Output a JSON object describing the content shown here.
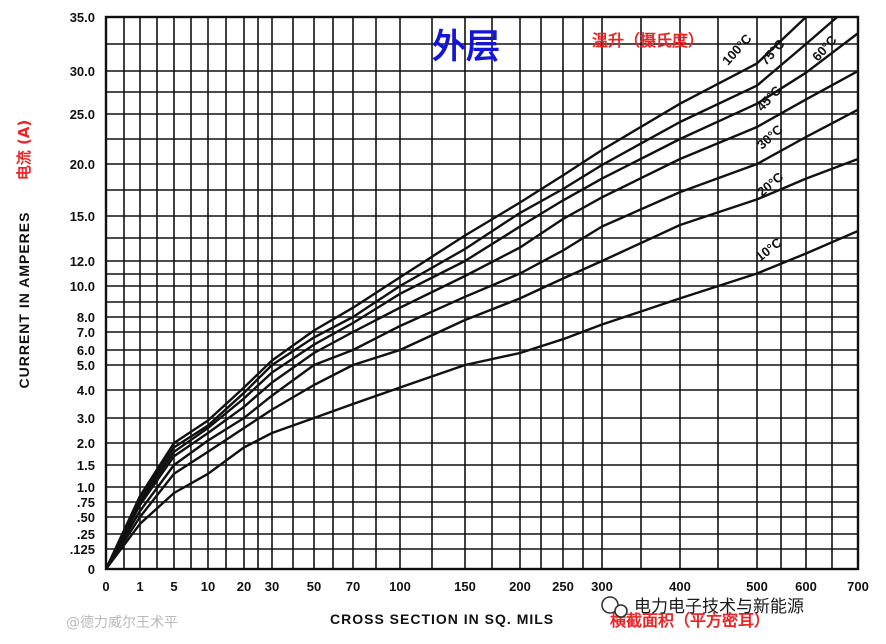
{
  "chart_data": {
    "type": "line",
    "title": "外层",
    "legend_title": "温升（摄氏度）",
    "xlabel": "CROSS SECTION IN SQ. MILS",
    "xlabel_cn": "横截面积（平方密耳）",
    "ylabel": "CURRENT IN AMPERES",
    "ylabel_cn": "电流 (A)",
    "x_ticks": [
      {
        "v": 0,
        "t": "0"
      },
      {
        "v": 1,
        "t": "1"
      },
      {
        "v": 5,
        "t": "5"
      },
      {
        "v": 10,
        "t": "10"
      },
      {
        "v": 20,
        "t": "20"
      },
      {
        "v": 30,
        "t": "30"
      },
      {
        "v": 50,
        "t": "50"
      },
      {
        "v": 70,
        "t": "70"
      },
      {
        "v": 100,
        "t": "100"
      },
      {
        "v": 150,
        "t": "150"
      },
      {
        "v": 200,
        "t": "200"
      },
      {
        "v": 250,
        "t": "250"
      },
      {
        "v": 300,
        "t": "300"
      },
      {
        "v": 400,
        "t": "400"
      },
      {
        "v": 500,
        "t": "500"
      },
      {
        "v": 600,
        "t": "600"
      },
      {
        "v": 700,
        "t": "700"
      }
    ],
    "y_ticks": [
      {
        "v": 0,
        "t": "0"
      },
      {
        "v": 0.125,
        "t": ".125"
      },
      {
        "v": 0.25,
        "t": ".25"
      },
      {
        "v": 0.5,
        "t": ".50"
      },
      {
        "v": 0.75,
        "t": ".75"
      },
      {
        "v": 1.0,
        "t": "1.0"
      },
      {
        "v": 1.5,
        "t": "1.5"
      },
      {
        "v": 2.0,
        "t": "2.0"
      },
      {
        "v": 3.0,
        "t": "3.0"
      },
      {
        "v": 4.0,
        "t": "4.0"
      },
      {
        "v": 5.0,
        "t": "5.0"
      },
      {
        "v": 6.0,
        "t": "6.0"
      },
      {
        "v": 7.0,
        "t": "7.0"
      },
      {
        "v": 8.0,
        "t": "8.0"
      },
      {
        "v": 10.0,
        "t": "10.0"
      },
      {
        "v": 12.0,
        "t": "12.0"
      },
      {
        "v": 15.0,
        "t": "15.0"
      },
      {
        "v": 20.0,
        "t": "20.0"
      },
      {
        "v": 25.0,
        "t": "25.0"
      },
      {
        "v": 30.0,
        "t": "30.0"
      },
      {
        "v": 35.0,
        "t": "35.0"
      }
    ],
    "xlim": [
      0,
      700
    ],
    "ylim": [
      0,
      35
    ],
    "scale": "non-linear (manufacturer nomograph axes)",
    "grid": true,
    "series": [
      {
        "name": "10°C",
        "x": [
          0,
          1,
          5,
          10,
          20,
          30,
          50,
          70,
          100,
          150,
          200,
          250,
          300,
          400,
          500,
          600,
          700
        ],
        "y": [
          0,
          0.4,
          0.9,
          1.3,
          1.9,
          2.4,
          3.0,
          3.5,
          4.1,
          5.0,
          5.8,
          6.6,
          7.5,
          9.2,
          11.0,
          12.5,
          14.0
        ]
      },
      {
        "name": "20°C",
        "x": [
          0,
          1,
          5,
          10,
          20,
          30,
          50,
          70,
          100,
          150,
          200,
          250,
          300,
          400,
          500,
          600,
          700
        ],
        "y": [
          0,
          0.5,
          1.3,
          1.8,
          2.6,
          3.3,
          4.2,
          5.0,
          6.0,
          7.8,
          9.2,
          10.6,
          12.0,
          14.4,
          16.6,
          18.6,
          20.5
        ]
      },
      {
        "name": "30°C",
        "x": [
          0,
          1,
          5,
          10,
          20,
          30,
          50,
          70,
          100,
          150,
          200,
          250,
          300,
          400,
          500,
          600,
          700
        ],
        "y": [
          0,
          0.6,
          1.5,
          2.1,
          3.0,
          3.8,
          5.0,
          6.0,
          7.4,
          9.3,
          11.0,
          12.7,
          14.3,
          17.3,
          20.0,
          22.7,
          25.5
        ]
      },
      {
        "name": "45°C",
        "x": [
          0,
          1,
          5,
          10,
          20,
          30,
          50,
          70,
          100,
          150,
          200,
          250,
          300,
          400,
          500,
          600,
          700
        ],
        "y": [
          0,
          0.7,
          1.7,
          2.4,
          3.4,
          4.3,
          5.8,
          7.0,
          8.6,
          10.8,
          12.9,
          14.8,
          16.8,
          20.5,
          23.7,
          26.7,
          30.0
        ]
      },
      {
        "name": "60°C",
        "x": [
          0,
          1,
          5,
          10,
          20,
          30,
          50,
          70,
          100,
          150,
          200,
          250,
          300,
          400,
          500,
          600,
          700
        ],
        "y": [
          0,
          0.75,
          1.8,
          2.6,
          3.7,
          4.7,
          6.3,
          7.6,
          9.5,
          12.0,
          14.3,
          16.5,
          18.6,
          22.5,
          26.2,
          29.8,
          33.5
        ]
      },
      {
        "name": "75°C",
        "x": [
          0,
          1,
          5,
          10,
          20,
          30,
          50,
          70,
          100,
          150,
          200,
          250,
          300,
          400,
          500,
          600,
          660
        ],
        "y": [
          0,
          0.8,
          1.9,
          2.7,
          3.9,
          5.0,
          6.7,
          8.0,
          10.0,
          12.8,
          15.3,
          17.6,
          19.9,
          24.2,
          28.3,
          32.5,
          35.0
        ]
      },
      {
        "name": "100°C",
        "x": [
          0,
          1,
          5,
          10,
          20,
          30,
          50,
          70,
          100,
          150,
          200,
          250,
          300,
          400,
          500,
          600
        ],
        "y": [
          0,
          0.85,
          2.0,
          2.9,
          4.1,
          5.3,
          7.1,
          8.6,
          10.7,
          13.7,
          16.3,
          18.9,
          21.4,
          26.2,
          30.7,
          35.0
        ]
      }
    ]
  },
  "watermarks": {
    "left": "@德力威尔王术平",
    "right": "电力电子技术与新能源"
  }
}
